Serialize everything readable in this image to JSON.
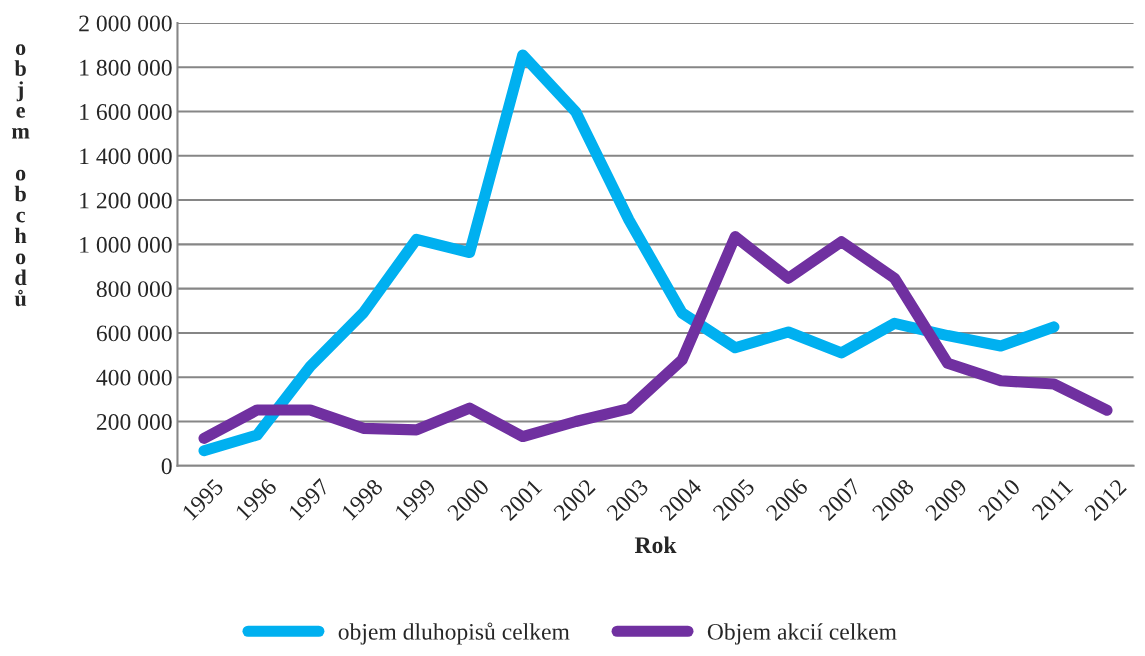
{
  "chart_data": {
    "type": "line",
    "xlabel": "Rok",
    "ylabel": "objem obchodů",
    "categories": [
      "1995",
      "1996",
      "1997",
      "1998",
      "1999",
      "2000",
      "2001",
      "2002",
      "2003",
      "2004",
      "2005",
      "2006",
      "2007",
      "2008",
      "2009",
      "2010",
      "2011",
      "2012"
    ],
    "series": [
      {
        "name": "objem dluhopisů celkem",
        "color": "#00b0f0",
        "values": [
          68000,
          139000,
          449000,
          691000,
          1023000,
          963000,
          1855000,
          1598000,
          1110000,
          690000,
          533000,
          604000,
          510000,
          643000,
          588000,
          541000,
          627000,
          null
        ]
      },
      {
        "name": "Objem akcií celkem",
        "color": "#7030a0",
        "values": [
          124000,
          252000,
          252000,
          169000,
          162000,
          260000,
          132000,
          200000,
          258000,
          478000,
          1035000,
          847000,
          1012000,
          847000,
          463000,
          384000,
          369000,
          251000
        ]
      }
    ],
    "ylim": [
      0,
      2000000
    ],
    "yticks": [
      {
        "value": 0,
        "label": "0"
      },
      {
        "value": 200000,
        "label": "200 000"
      },
      {
        "value": 400000,
        "label": "400 000"
      },
      {
        "value": 600000,
        "label": "600 000"
      },
      {
        "value": 800000,
        "label": "800 000"
      },
      {
        "value": 1000000,
        "label": "1 000 000"
      },
      {
        "value": 1200000,
        "label": "1 200 000"
      },
      {
        "value": 1400000,
        "label": "1 400 000"
      },
      {
        "value": 1600000,
        "label": "1 600 000"
      },
      {
        "value": 1800000,
        "label": "1 800 000"
      },
      {
        "value": 2000000,
        "label": "2 000 000"
      }
    ],
    "grid": "y",
    "legend": "bottom",
    "marker": "none",
    "line_style": "solid"
  }
}
